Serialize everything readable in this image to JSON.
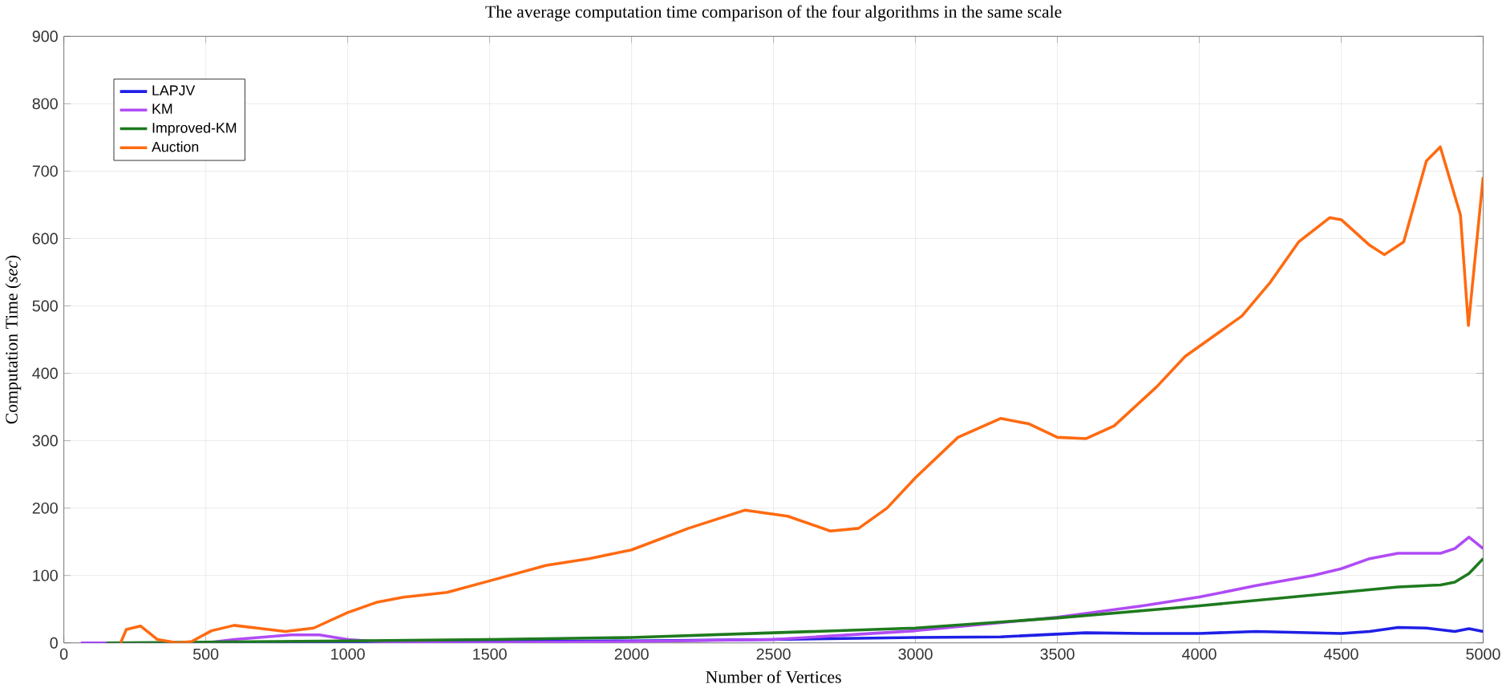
{
  "chart_data": {
    "type": "line",
    "title": "The average computation time comparison of the four algorithms in the same scale",
    "xlabel": "Number of Vertices",
    "ylabel": "Computation Time (*sec*)",
    "xlim": [
      0,
      5000
    ],
    "xticks": [
      0,
      500,
      1000,
      1500,
      2000,
      2500,
      3000,
      3500,
      4000,
      4500,
      5000
    ],
    "ylim": [
      0,
      900
    ],
    "yticks": [
      0,
      100,
      200,
      300,
      400,
      500,
      600,
      700,
      800,
      900
    ],
    "grid": true,
    "legend": "top left",
    "line_style": "solid",
    "marker": "none",
    "series": [
      {
        "name": "LAPJV",
        "color": "#1f1fe6",
        "x": [
          60,
          500,
          1000,
          1500,
          2000,
          2500,
          3000,
          3300,
          3600,
          3800,
          4000,
          4200,
          4500,
          4600,
          4700,
          4800,
          4900,
          4950,
          5000
        ],
        "values": [
          0,
          0,
          1,
          2,
          3,
          5,
          8,
          9,
          15,
          14,
          14,
          17,
          14,
          17,
          23,
          22,
          17,
          21,
          17
        ]
      },
      {
        "name": "KM",
        "color": "#b04bf5",
        "x": [
          60,
          500,
          600,
          800,
          900,
          1000,
          1100,
          1300,
          2000,
          2500,
          3000,
          3300,
          3500,
          3800,
          4000,
          4200,
          4400,
          4500,
          4600,
          4700,
          4850,
          4900,
          4950,
          5000
        ],
        "values": [
          0,
          0,
          5,
          12,
          12,
          5,
          2,
          0,
          2,
          5,
          18,
          30,
          38,
          55,
          68,
          85,
          100,
          110,
          125,
          133,
          133,
          140,
          157,
          140
        ]
      },
      {
        "name": "Improved-KM",
        "color": "#1e7a1e",
        "x": [
          150,
          1000,
          1500,
          2000,
          2500,
          3000,
          3500,
          4000,
          4500,
          4700,
          4850,
          4900,
          4950,
          5000
        ],
        "values": [
          0,
          3,
          5,
          8,
          15,
          22,
          37,
          55,
          75,
          83,
          86,
          90,
          103,
          125
        ]
      },
      {
        "name": "Auction",
        "color": "#ff6a10",
        "x": [
          200,
          220,
          270,
          330,
          400,
          450,
          520,
          600,
          680,
          780,
          880,
          1000,
          1100,
          1200,
          1350,
          1500,
          1700,
          1850,
          2000,
          2200,
          2400,
          2550,
          2700,
          2800,
          2900,
          3000,
          3150,
          3300,
          3400,
          3500,
          3600,
          3700,
          3850,
          3950,
          4050,
          4150,
          4250,
          4350,
          4460,
          4500,
          4600,
          4652,
          4720,
          4800,
          4849,
          4920,
          4948,
          5000
        ],
        "values": [
          0,
          20,
          25,
          5,
          0,
          2,
          18,
          26,
          22,
          17,
          22,
          45,
          60,
          68,
          75,
          92,
          115,
          125,
          138,
          170,
          197,
          188,
          166,
          170,
          200,
          245,
          305,
          333,
          325,
          305,
          303,
          322,
          380,
          425,
          455,
          485,
          535,
          595,
          631,
          628,
          590,
          576,
          595,
          715,
          736,
          635,
          471,
          691
        ]
      }
    ]
  }
}
